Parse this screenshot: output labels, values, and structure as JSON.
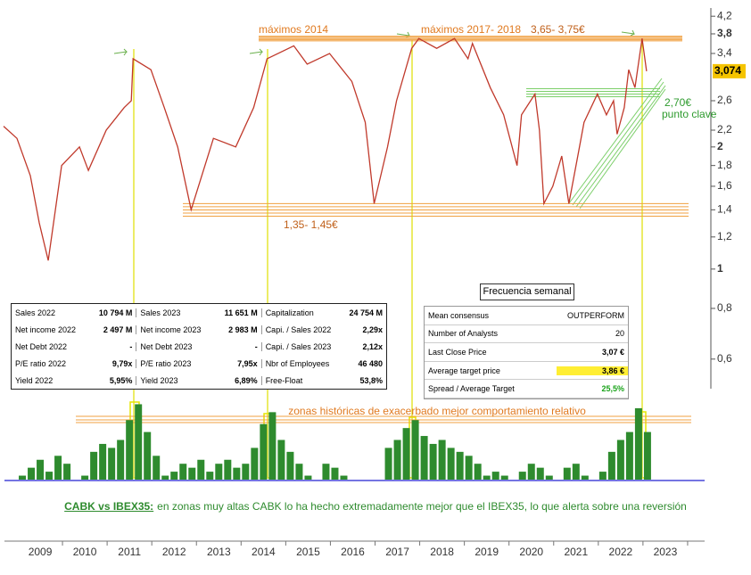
{
  "chart_data": [
    {
      "type": "line",
      "log_y": true,
      "color": "#c0392b",
      "x": [
        2008.18,
        2008.48,
        2008.78,
        2008.98,
        2009.18,
        2009.48,
        2009.88,
        2010.08,
        2010.48,
        2010.88,
        2011.04,
        2011.08,
        2011.48,
        2011.78,
        2012.08,
        2012.38,
        2012.88,
        2013.38,
        2013.78,
        2014.08,
        2014.68,
        2014.98,
        2015.48,
        2015.98,
        2016.28,
        2016.48,
        2016.78,
        2016.98,
        2017.32,
        2017.48,
        2017.88,
        2018.28,
        2018.58,
        2018.68,
        2019.08,
        2019.38,
        2019.68,
        2019.78,
        2020.08,
        2020.18,
        2020.28,
        2020.48,
        2020.68,
        2020.84,
        2021.04,
        2021.18,
        2021.48,
        2021.68,
        2021.84,
        2021.92,
        2022.08,
        2022.18,
        2022.32,
        2022.48,
        2022.58
      ],
      "values": [
        2.25,
        2.1,
        1.7,
        1.3,
        1.05,
        1.8,
        2.0,
        1.75,
        2.2,
        2.5,
        2.6,
        3.3,
        3.1,
        2.5,
        2.0,
        1.4,
        2.1,
        2.0,
        2.5,
        3.3,
        3.55,
        3.2,
        3.4,
        2.9,
        2.3,
        1.45,
        2.0,
        2.6,
        3.5,
        3.7,
        3.5,
        3.7,
        3.3,
        3.6,
        2.8,
        2.4,
        1.8,
        2.4,
        2.7,
        2.2,
        1.45,
        1.6,
        1.9,
        1.45,
        1.9,
        2.3,
        2.7,
        2.4,
        2.6,
        2.15,
        2.5,
        3.1,
        2.8,
        3.7,
        3.074
      ],
      "xlim": [
        2008.2,
        2023.9
      ],
      "xticks": [
        2009,
        2010,
        2011,
        2012,
        2013,
        2014,
        2015,
        2016,
        2017,
        2018,
        2019,
        2020,
        2021,
        2022,
        2023
      ],
      "ylim": [
        0.55,
        4.4
      ],
      "yticks": [
        {
          "value": 4.2,
          "label": "4,2"
        },
        {
          "value": 3.8,
          "label": "3,8"
        },
        {
          "value": 3.4,
          "label": "3,4"
        },
        {
          "value": 2.6,
          "label": "2,6"
        },
        {
          "value": 2.2,
          "label": "2,2"
        },
        2,
        {
          "value": 1.8,
          "label": "1,8"
        },
        {
          "value": 1.6,
          "label": "1,6"
        },
        {
          "value": 1.4,
          "label": "1,4"
        },
        {
          "value": 1.2,
          "label": "1,2"
        },
        1,
        {
          "value": 0.8,
          "label": "0,8"
        },
        {
          "value": 0.6,
          "label": "0,6"
        }
      ],
      "last_price": {
        "value": 3.074,
        "label": "3,074"
      },
      "zones": [
        {
          "low": 3.65,
          "high": 3.75,
          "label": "3,65- 3,75€",
          "color": "#f0a040"
        },
        {
          "low": 1.35,
          "high": 1.45,
          "label": "1,35- 1,45€",
          "color": "#f0a040"
        },
        {
          "value": 2.7,
          "label": "2,70€",
          "note": "punto clave",
          "color": "#7ccf6a"
        }
      ],
      "annotations": [
        "máximos 2014",
        "máximos 2017- 2018"
      ]
    },
    {
      "type": "bar",
      "color": "#2e8b2e",
      "x": [
        2008.2,
        2008.4,
        2008.6,
        2008.8,
        2009.0,
        2009.2,
        2009.4,
        2009.6,
        2009.8,
        2010.0,
        2010.2,
        2010.4,
        2010.6,
        2010.8,
        2011.0,
        2011.2,
        2011.4,
        2011.6,
        2011.8,
        2012.0,
        2012.2,
        2012.4,
        2012.6,
        2012.8,
        2013.0,
        2013.2,
        2013.4,
        2013.6,
        2013.8,
        2014.0,
        2014.2,
        2014.4,
        2014.6,
        2014.8,
        2015.0,
        2015.2,
        2015.4,
        2015.6,
        2015.8,
        2016.0,
        2016.2,
        2016.4,
        2016.6,
        2016.8,
        2017.0,
        2017.2,
        2017.4,
        2017.6,
        2017.8,
        2018.0,
        2018.2,
        2018.4,
        2018.6,
        2018.8,
        2019.0,
        2019.2,
        2019.4,
        2019.6,
        2019.8,
        2020.0,
        2020.2,
        2020.4,
        2020.6,
        2020.8,
        2021.0,
        2021.2,
        2021.4,
        2021.6,
        2021.8,
        2022.0,
        2022.2,
        2022.4,
        2022.6
      ],
      "values": [
        0,
        0,
        5,
        15,
        25,
        10,
        30,
        20,
        0,
        5,
        35,
        45,
        40,
        50,
        75,
        95,
        60,
        30,
        5,
        10,
        20,
        15,
        25,
        10,
        20,
        25,
        15,
        20,
        40,
        70,
        85,
        50,
        35,
        20,
        5,
        0,
        20,
        15,
        5,
        0,
        0,
        0,
        0,
        40,
        50,
        65,
        75,
        55,
        45,
        50,
        40,
        35,
        30,
        20,
        5,
        10,
        5,
        0,
        10,
        20,
        15,
        5,
        0,
        15,
        20,
        5,
        0,
        10,
        35,
        50,
        60,
        90,
        60
      ],
      "ylim": [
        0,
        100
      ],
      "annotation": "zonas históricas de exacerbado mejor comportamiento relativo"
    }
  ],
  "fundamentals": {
    "rows": [
      [
        "Sales 2022",
        "10 794 M",
        "Sales 2023",
        "11 651 M",
        "Capitalization",
        "24 754 M"
      ],
      [
        "Net income 2022",
        "2 497 M",
        "Net income 2023",
        "2 983 M",
        "Capi. / Sales 2022",
        "2,29x"
      ],
      [
        "Net Debt 2022",
        "-",
        "Net Debt 2023",
        "-",
        "Capi. / Sales 2023",
        "2,12x"
      ],
      [
        "P/E ratio 2022",
        "9,79x",
        "P/E ratio 2023",
        "7,95x",
        "Nbr of Employees",
        "46 480"
      ],
      [
        "Yield 2022",
        "5,95%",
        "Yield 2023",
        "6,89%",
        "Free-Float",
        "53,8%"
      ]
    ]
  },
  "consensus": {
    "title": "Frecuencia semanal",
    "rows": [
      [
        "Mean consensus",
        "OUTPERFORM"
      ],
      [
        "Number of Analysts",
        "20"
      ],
      [
        "Last Close Price",
        "3,07 €"
      ],
      [
        "Average target price",
        "3,86 €"
      ],
      [
        "Spread / Average Target",
        "25,5%"
      ]
    ]
  },
  "caption": {
    "lead": "CABK vs IBEX35:",
    "text": "en zonas muy altas CABK lo ha hecho extremadamente mejor que el IBEX35, lo que alerta sobre una reversión"
  }
}
